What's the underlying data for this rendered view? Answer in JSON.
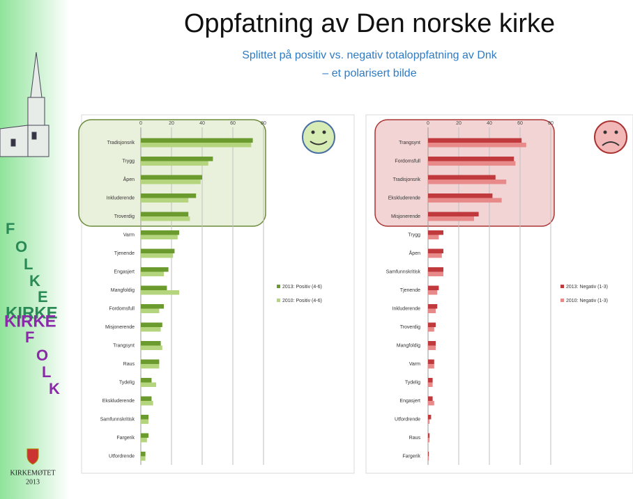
{
  "slide": {
    "title": "Oppfatning av Den norske kirke",
    "subtitle": [
      "Splittet på positiv vs. negativ totaloppfatning av Dnk",
      "– et polarisert bilde"
    ],
    "sidebar": {
      "diagonal_top": [
        "F",
        "O",
        "L",
        "K",
        "E"
      ],
      "word_green": "KIRKE",
      "word_purple": "KIRKE",
      "diagonal_bottom": [
        "F",
        "O",
        "L",
        "K"
      ],
      "logo_text": "KIRKEMØTET",
      "logo_year": "2013"
    }
  },
  "chart_data": [
    {
      "type": "barh",
      "categories": [
        "Tradisjonsrik",
        "Trygg",
        "Åpen",
        "Inkluderende",
        "Troverdig",
        "Varm",
        "Tjenende",
        "Engasjert",
        "Mangfoldig",
        "Fordomsfull",
        "Misjonerende",
        "Trangsynt",
        "Raus",
        "Tydelig",
        "Ekskluderende",
        "Samfunnskritisk",
        "Fargerik",
        "Utfordrende"
      ],
      "series": [
        {
          "name": "2013: Positiv (4-6)",
          "color": "#6b9a2e",
          "values": [
            73,
            47,
            40,
            36,
            31,
            25,
            22,
            18,
            17,
            15,
            14,
            13,
            12,
            7,
            7,
            5,
            5,
            3
          ]
        },
        {
          "name": "2010: Positiv (4-6)",
          "color": "#b5d47e",
          "values": [
            72,
            44,
            39,
            31,
            32,
            24,
            21,
            15,
            25,
            12,
            13,
            14,
            12,
            10,
            8,
            5,
            4,
            3
          ]
        }
      ],
      "xlim": [
        0,
        80
      ],
      "xticks": [
        0,
        20,
        40,
        60,
        80
      ],
      "grid": true
    },
    {
      "type": "barh",
      "categories": [
        "Trangsynt",
        "Fordomsfull",
        "Tradisjonsrik",
        "Ekskluderende",
        "Misjonerende",
        "Trygg",
        "Åpen",
        "Samfunnskritisk",
        "Tjenende",
        "Inkluderende",
        "Troverdig",
        "Mangfoldig",
        "Varm",
        "Tydelig",
        "Engasjert",
        "Utfordrende",
        "Raus",
        "Fargerik"
      ],
      "series": [
        {
          "name": "2013: Negativ (1-3)",
          "color": "#c0393c",
          "values": [
            61,
            56,
            44,
            42,
            33,
            10,
            10,
            10,
            7,
            6,
            5,
            5,
            4,
            3,
            3,
            2,
            1,
            0.5
          ]
        },
        {
          "name": "2010: Negativ (1-3)",
          "color": "#e8898a",
          "values": [
            64,
            57,
            51,
            48,
            30,
            7,
            9,
            10,
            6,
            5,
            4,
            5,
            4,
            3,
            4,
            1,
            1,
            0.5
          ]
        }
      ],
      "xlim": [
        0,
        80
      ],
      "xticks": [
        0,
        20,
        40,
        60,
        80
      ],
      "grid": true
    }
  ]
}
